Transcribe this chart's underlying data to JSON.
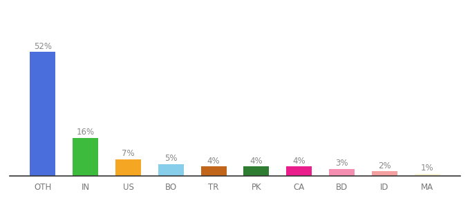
{
  "categories": [
    "OTH",
    "IN",
    "US",
    "BO",
    "TR",
    "PK",
    "CA",
    "BD",
    "ID",
    "MA"
  ],
  "values": [
    52,
    16,
    7,
    5,
    4,
    4,
    4,
    3,
    2,
    1
  ],
  "bar_colors": [
    "#4a6fdc",
    "#3dbb3d",
    "#f5a623",
    "#87ceeb",
    "#c0651a",
    "#2e7d32",
    "#e91e8c",
    "#f48fb1",
    "#f4a0a0",
    "#f5f0d0"
  ],
  "background_color": "#ffffff",
  "label_fontsize": 8.5,
  "tick_fontsize": 8.5,
  "label_color": "#888888",
  "tick_color": "#777777"
}
